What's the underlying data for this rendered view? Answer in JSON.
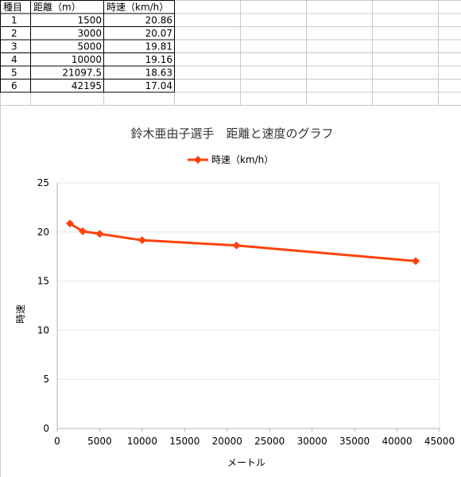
{
  "table": {
    "headers": [
      "種目",
      "距離（m）",
      "時速（km/h）"
    ],
    "rows": [
      [
        "1",
        "1500",
        "20.86"
      ],
      [
        "2",
        "3000",
        "20.07"
      ],
      [
        "3",
        "5000",
        "19.81"
      ],
      [
        "4",
        "10000",
        "19.16"
      ],
      [
        "5",
        "21097.5",
        "18.63"
      ],
      [
        "6",
        "42195",
        "17.04"
      ]
    ]
  },
  "chart_data": {
    "type": "line",
    "title": "鈴木亜由子選手　距離と速度のグラフ",
    "xlabel": "メートル",
    "ylabel": "時速",
    "xlim": [
      0,
      45000
    ],
    "ylim": [
      0,
      25
    ],
    "xticks": [
      0,
      5000,
      10000,
      15000,
      20000,
      25000,
      30000,
      35000,
      40000,
      45000
    ],
    "yticks": [
      0,
      5,
      10,
      15,
      20,
      25
    ],
    "grid": true,
    "legend_position": "top",
    "series": [
      {
        "name": "時速（km/h）",
        "color": "#ff420e",
        "marker": "diamond",
        "x": [
          1500,
          3000,
          5000,
          10000,
          21097.5,
          42195
        ],
        "y": [
          20.86,
          20.07,
          19.81,
          19.16,
          18.63,
          17.04
        ]
      }
    ]
  }
}
